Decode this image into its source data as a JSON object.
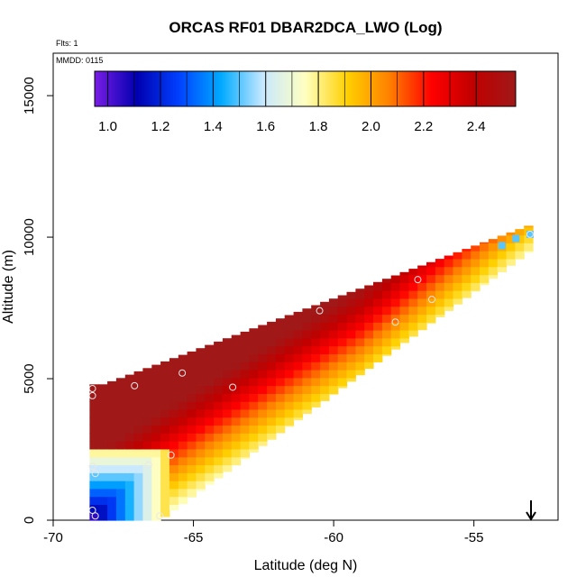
{
  "title": "ORCAS RF01 DBAR2DCA_LWO (Log)",
  "flts_note": "Flts: 1",
  "mmdd_note": "MMDD: 0115",
  "chart_data": {
    "type": "heatmap",
    "title": "ORCAS RF01 DBAR2DCA_LWO (Log)",
    "xlabel": "Latitude (deg N)",
    "ylabel": "Altitude (m)",
    "xlim": [
      -70,
      -52
    ],
    "ylim": [
      0,
      16500
    ],
    "x_ticks": [
      -70,
      -65,
      -60,
      -55
    ],
    "x_tick_labels": [
      "-70",
      "-65",
      "-60",
      "-55"
    ],
    "y_ticks": [
      0,
      5000,
      10000,
      15000
    ],
    "y_tick_labels": [
      "0",
      "5000",
      "10000",
      "15000"
    ],
    "colorbar": {
      "min": 0.95,
      "max": 2.55,
      "ticks": [
        1.0,
        1.2,
        1.4,
        1.6,
        1.8,
        2.0,
        2.2,
        2.4
      ],
      "tick_labels": [
        "1.0",
        "1.2",
        "1.4",
        "1.6",
        "1.8",
        "2.0",
        "2.2",
        "2.4"
      ],
      "colors": [
        "#7a1ce6",
        "#0000b0",
        "#0040ff",
        "#00aaff",
        "#c8e8ff",
        "#ffffc0",
        "#ffd000",
        "#ff8000",
        "#ff0000",
        "#c00000",
        "#a01818"
      ]
    },
    "flight_track_points": [
      {
        "lat": -68.6,
        "alt": 4650
      },
      {
        "lat": -68.6,
        "alt": 4400
      },
      {
        "lat": -67.1,
        "alt": 4750
      },
      {
        "lat": -65.4,
        "alt": 5200
      },
      {
        "lat": -63.6,
        "alt": 4700
      },
      {
        "lat": -60.5,
        "alt": 7400
      },
      {
        "lat": -57.8,
        "alt": 7000
      },
      {
        "lat": -57.0,
        "alt": 8500
      },
      {
        "lat": -56.5,
        "alt": 7800
      },
      {
        "lat": -68.6,
        "alt": 1900
      },
      {
        "lat": -68.5,
        "alt": 1650
      },
      {
        "lat": -66.6,
        "alt": 1950
      },
      {
        "lat": -65.8,
        "alt": 2300
      },
      {
        "lat": -68.6,
        "alt": 350
      },
      {
        "lat": -68.5,
        "alt": 150
      },
      {
        "lat": -66.2,
        "alt": 150
      },
      {
        "lat": -53.0,
        "alt": 10100
      }
    ],
    "field_description_values": {
      "upper_left_max": 2.5,
      "diagonal_mid": 1.8,
      "upper_right_min": 1.45,
      "lower_left_min": 1.05
    },
    "arrow_marker_lat": -53.0,
    "grid": false,
    "legend": "top"
  }
}
